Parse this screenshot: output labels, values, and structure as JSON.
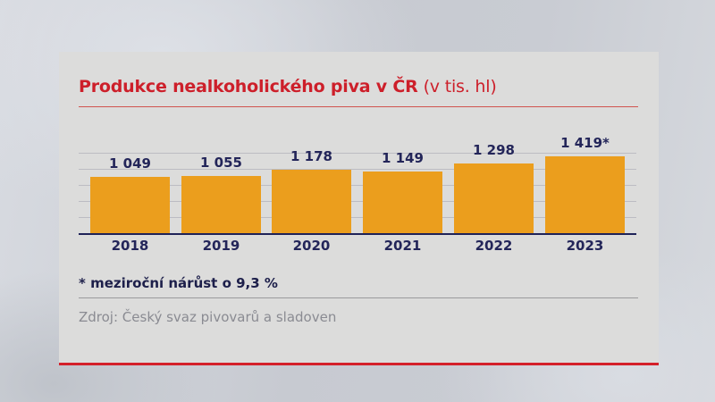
{
  "title": {
    "main": "Produkce nealkoholického piva v ČR",
    "unit": "(v tis. hl)"
  },
  "footnote": "* meziroční nárůst o 9,3 %",
  "source": "Zdroj: Český svaz pivovarů a sladoven",
  "colors": {
    "bar": "#eb9e1d",
    "title": "#cd1f2a",
    "labels": "#232559",
    "accent_border": "#d4202a"
  },
  "bars": [
    {
      "year": "2018",
      "label": "1 049"
    },
    {
      "year": "2019",
      "label": "1 055"
    },
    {
      "year": "2020",
      "label": "1 178"
    },
    {
      "year": "2021",
      "label": "1 149"
    },
    {
      "year": "2022",
      "label": "1 298"
    },
    {
      "year": "2023",
      "label": "1 419*"
    }
  ],
  "chart_data": {
    "type": "bar",
    "title": "Produkce nealkoholického piva v ČR (v tis. hl)",
    "categories": [
      "2018",
      "2019",
      "2020",
      "2021",
      "2022",
      "2023"
    ],
    "values": [
      1049,
      1055,
      1178,
      1149,
      1298,
      1419
    ],
    "data_labels": [
      "1 049",
      "1 055",
      "1 178",
      "1 149",
      "1 298",
      "1 419*"
    ],
    "xlabel": "",
    "ylabel": "tis. hl",
    "ylim": [
      0,
      1500
    ],
    "grid": true,
    "legend": null,
    "annotations": [
      "* meziroční nárůst o 9,3 %",
      "Zdroj: Český svaz pivovarů a sladoven"
    ]
  }
}
